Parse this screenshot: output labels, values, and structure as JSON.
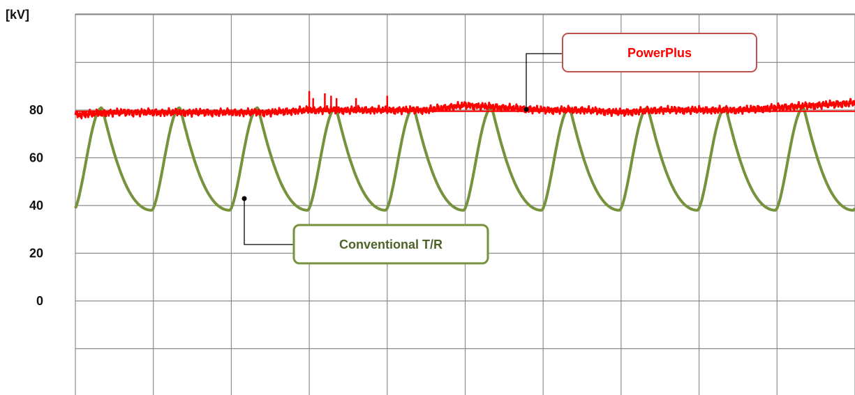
{
  "chart_data": {
    "type": "line",
    "title": "",
    "xlabel": "",
    "ylabel": "[kV]",
    "ylim": [
      0,
      100
    ],
    "y_ticks": [
      "80",
      "60",
      "40",
      "20",
      "0"
    ],
    "grid": true,
    "x_grid_columns": 10,
    "legend": "callouts",
    "series": [
      {
        "name": "PowerPlus",
        "color": "#ff0000",
        "behavior": "steady ripple",
        "x": [
          0,
          0.5,
          1,
          1.5,
          2,
          2.5,
          3,
          3.5,
          4,
          4.5,
          5,
          5.5,
          6,
          6.5,
          7,
          7.5,
          8,
          8.5,
          9,
          9.5,
          10
        ],
        "y": [
          78,
          79,
          79,
          79,
          79,
          79,
          80,
          80,
          80,
          80,
          82,
          81,
          80,
          80,
          79,
          80,
          80,
          80,
          81,
          82,
          83
        ]
      },
      {
        "name": "Conventional T/R",
        "color": "#76923c",
        "behavior": "periodic",
        "cycles": 10,
        "min": 38,
        "max": 81
      }
    ],
    "annotations": [
      {
        "text": "PowerPlus",
        "color": "#ff0000",
        "border": "#c0504d"
      },
      {
        "text": "Conventional T/R",
        "color": "#4f6228",
        "border": "#76923c"
      }
    ]
  }
}
